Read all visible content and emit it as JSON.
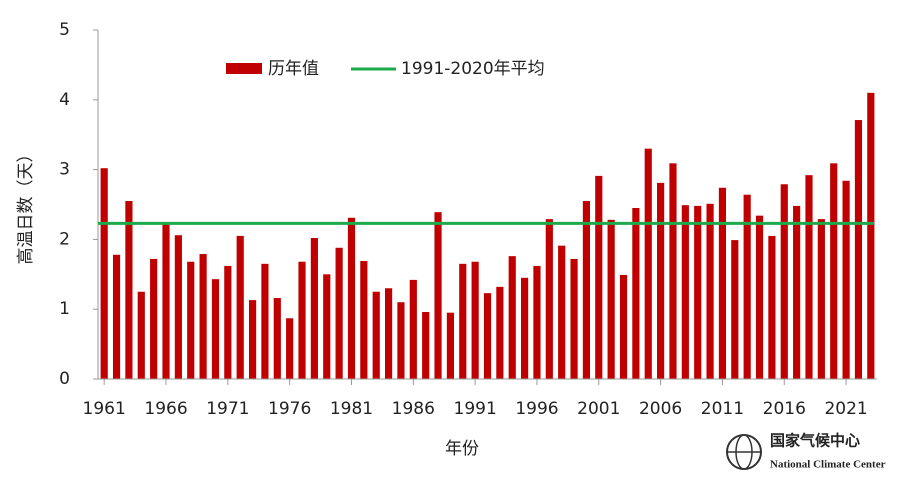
{
  "chart_data": {
    "type": "bar",
    "x": [
      1961,
      1962,
      1963,
      1964,
      1965,
      1966,
      1967,
      1968,
      1969,
      1970,
      1971,
      1972,
      1973,
      1974,
      1975,
      1976,
      1977,
      1978,
      1979,
      1980,
      1981,
      1982,
      1983,
      1984,
      1985,
      1986,
      1987,
      1988,
      1989,
      1990,
      1991,
      1992,
      1993,
      1994,
      1995,
      1996,
      1997,
      1998,
      1999,
      2000,
      2001,
      2002,
      2003,
      2004,
      2005,
      2006,
      2007,
      2008,
      2009,
      2010,
      2011,
      2012,
      2013,
      2014,
      2015,
      2016,
      2017,
      2018,
      2019,
      2020,
      2021,
      2022,
      2023
    ],
    "series": [
      {
        "name": "历年值",
        "color": "#c00000",
        "values": [
          3.02,
          1.78,
          2.55,
          1.25,
          1.72,
          2.22,
          2.06,
          1.68,
          1.79,
          1.43,
          1.62,
          2.05,
          1.13,
          1.65,
          1.16,
          0.87,
          1.68,
          2.02,
          1.5,
          1.88,
          2.31,
          1.69,
          1.25,
          1.3,
          1.1,
          1.42,
          0.96,
          2.39,
          0.95,
          1.65,
          1.68,
          1.23,
          1.32,
          1.76,
          1.45,
          1.62,
          2.29,
          1.91,
          1.72,
          2.55,
          2.91,
          2.28,
          1.49,
          2.45,
          3.3,
          2.81,
          3.09,
          2.49,
          2.48,
          2.51,
          2.74,
          1.99,
          2.64,
          2.34,
          2.05,
          2.79,
          2.48,
          2.92,
          2.29,
          3.09,
          2.84,
          3.71,
          4.1
        ]
      }
    ],
    "reference_lines": [
      {
        "name": "1991-2020年平均",
        "color": "#1daa4b",
        "value": 2.23
      }
    ],
    "xlim": [
      1960.5,
      2023.5
    ],
    "xticks": [
      1961,
      1966,
      1971,
      1976,
      1981,
      1986,
      1991,
      1996,
      2001,
      2006,
      2011,
      2016,
      2021
    ],
    "ylim": [
      0,
      5
    ],
    "yticks": [
      0,
      1,
      2,
      3,
      4,
      5
    ],
    "xlabel": "年份",
    "ylabel": "高温日数（天）",
    "logo": {
      "name_cn": "国家气候中心",
      "name_en": "National Climate Center"
    }
  }
}
